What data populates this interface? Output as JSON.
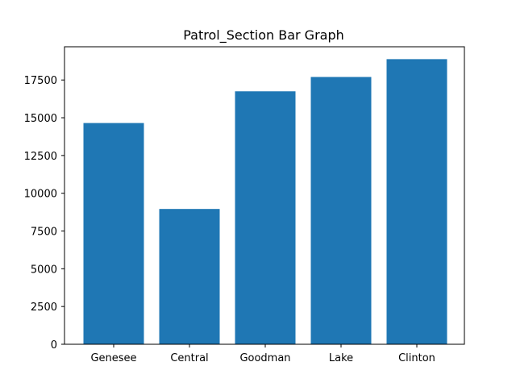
{
  "chart_data": {
    "type": "bar",
    "title": "Patrol_Section Bar Graph",
    "xlabel": "",
    "ylabel": "",
    "categories": [
      "Genesee",
      "Central",
      "Goodman",
      "Lake",
      "Clinton"
    ],
    "values": [
      14650,
      8960,
      16750,
      17700,
      18880
    ],
    "ylim": [
      0,
      19700
    ],
    "yticks": [
      0,
      2500,
      5000,
      7500,
      10000,
      12500,
      15000,
      17500
    ],
    "bar_color": "#1f77b4",
    "grid": false,
    "legend": "none"
  }
}
